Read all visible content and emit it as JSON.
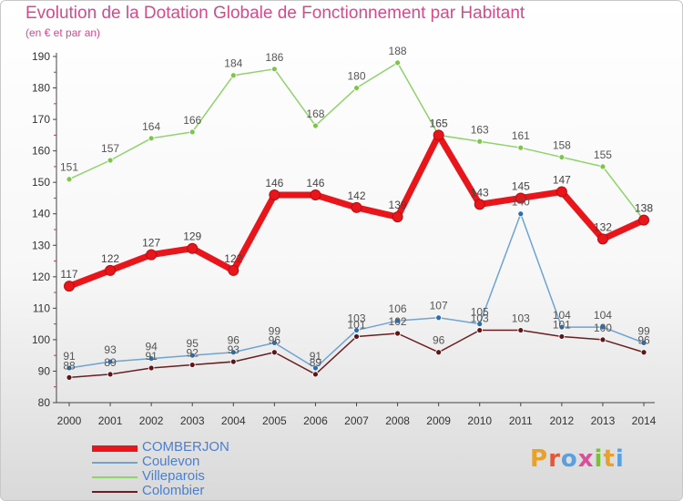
{
  "header": {
    "title": "Evolution de la Dotation Globale de Fonctionnement par Habitant",
    "subtitle": "(en € et par an)"
  },
  "logo": {
    "text": "Proxiti",
    "colors": [
      "#e8a12a",
      "#e05a3a",
      "#5aa0e0",
      "#d94f9a",
      "#7cbf3a",
      "#e8a12a",
      "#5aa0e0"
    ]
  },
  "chart_data": {
    "type": "line",
    "title": "Evolution de la Dotation Globale de Fonctionnement par Habitant",
    "subtitle": "(en € et par an)",
    "x": [
      2000,
      2001,
      2002,
      2003,
      2004,
      2005,
      2006,
      2007,
      2008,
      2009,
      2010,
      2011,
      2012,
      2013,
      2014
    ],
    "ylim": [
      80,
      190
    ],
    "yticks": [
      80,
      90,
      100,
      110,
      120,
      130,
      140,
      150,
      160,
      170,
      180,
      190
    ],
    "grid": false,
    "legend_position": "bottom-left",
    "series": [
      {
        "name": "COMBERJON",
        "color": "#e8161b",
        "values": [
          117,
          122,
          127,
          129,
          122,
          146,
          146,
          142,
          139,
          165,
          143,
          145,
          147,
          132,
          138
        ]
      },
      {
        "name": "Coulevon",
        "color": "#6ea3d4",
        "values": [
          91,
          93,
          94,
          95,
          96,
          99,
          91,
          103,
          106,
          107,
          105,
          140,
          104,
          104,
          99
        ]
      },
      {
        "name": "Villeparois",
        "color": "#8ed36a",
        "values": [
          151,
          157,
          164,
          166,
          184,
          186,
          168,
          180,
          188,
          165,
          163,
          161,
          158,
          155,
          138
        ]
      },
      {
        "name": "Colombier",
        "color": "#6a1e22",
        "values": [
          88,
          89,
          91,
          92,
          93,
          96,
          89,
          101,
          102,
          96,
          103,
          103,
          101,
          100,
          96
        ]
      }
    ]
  }
}
